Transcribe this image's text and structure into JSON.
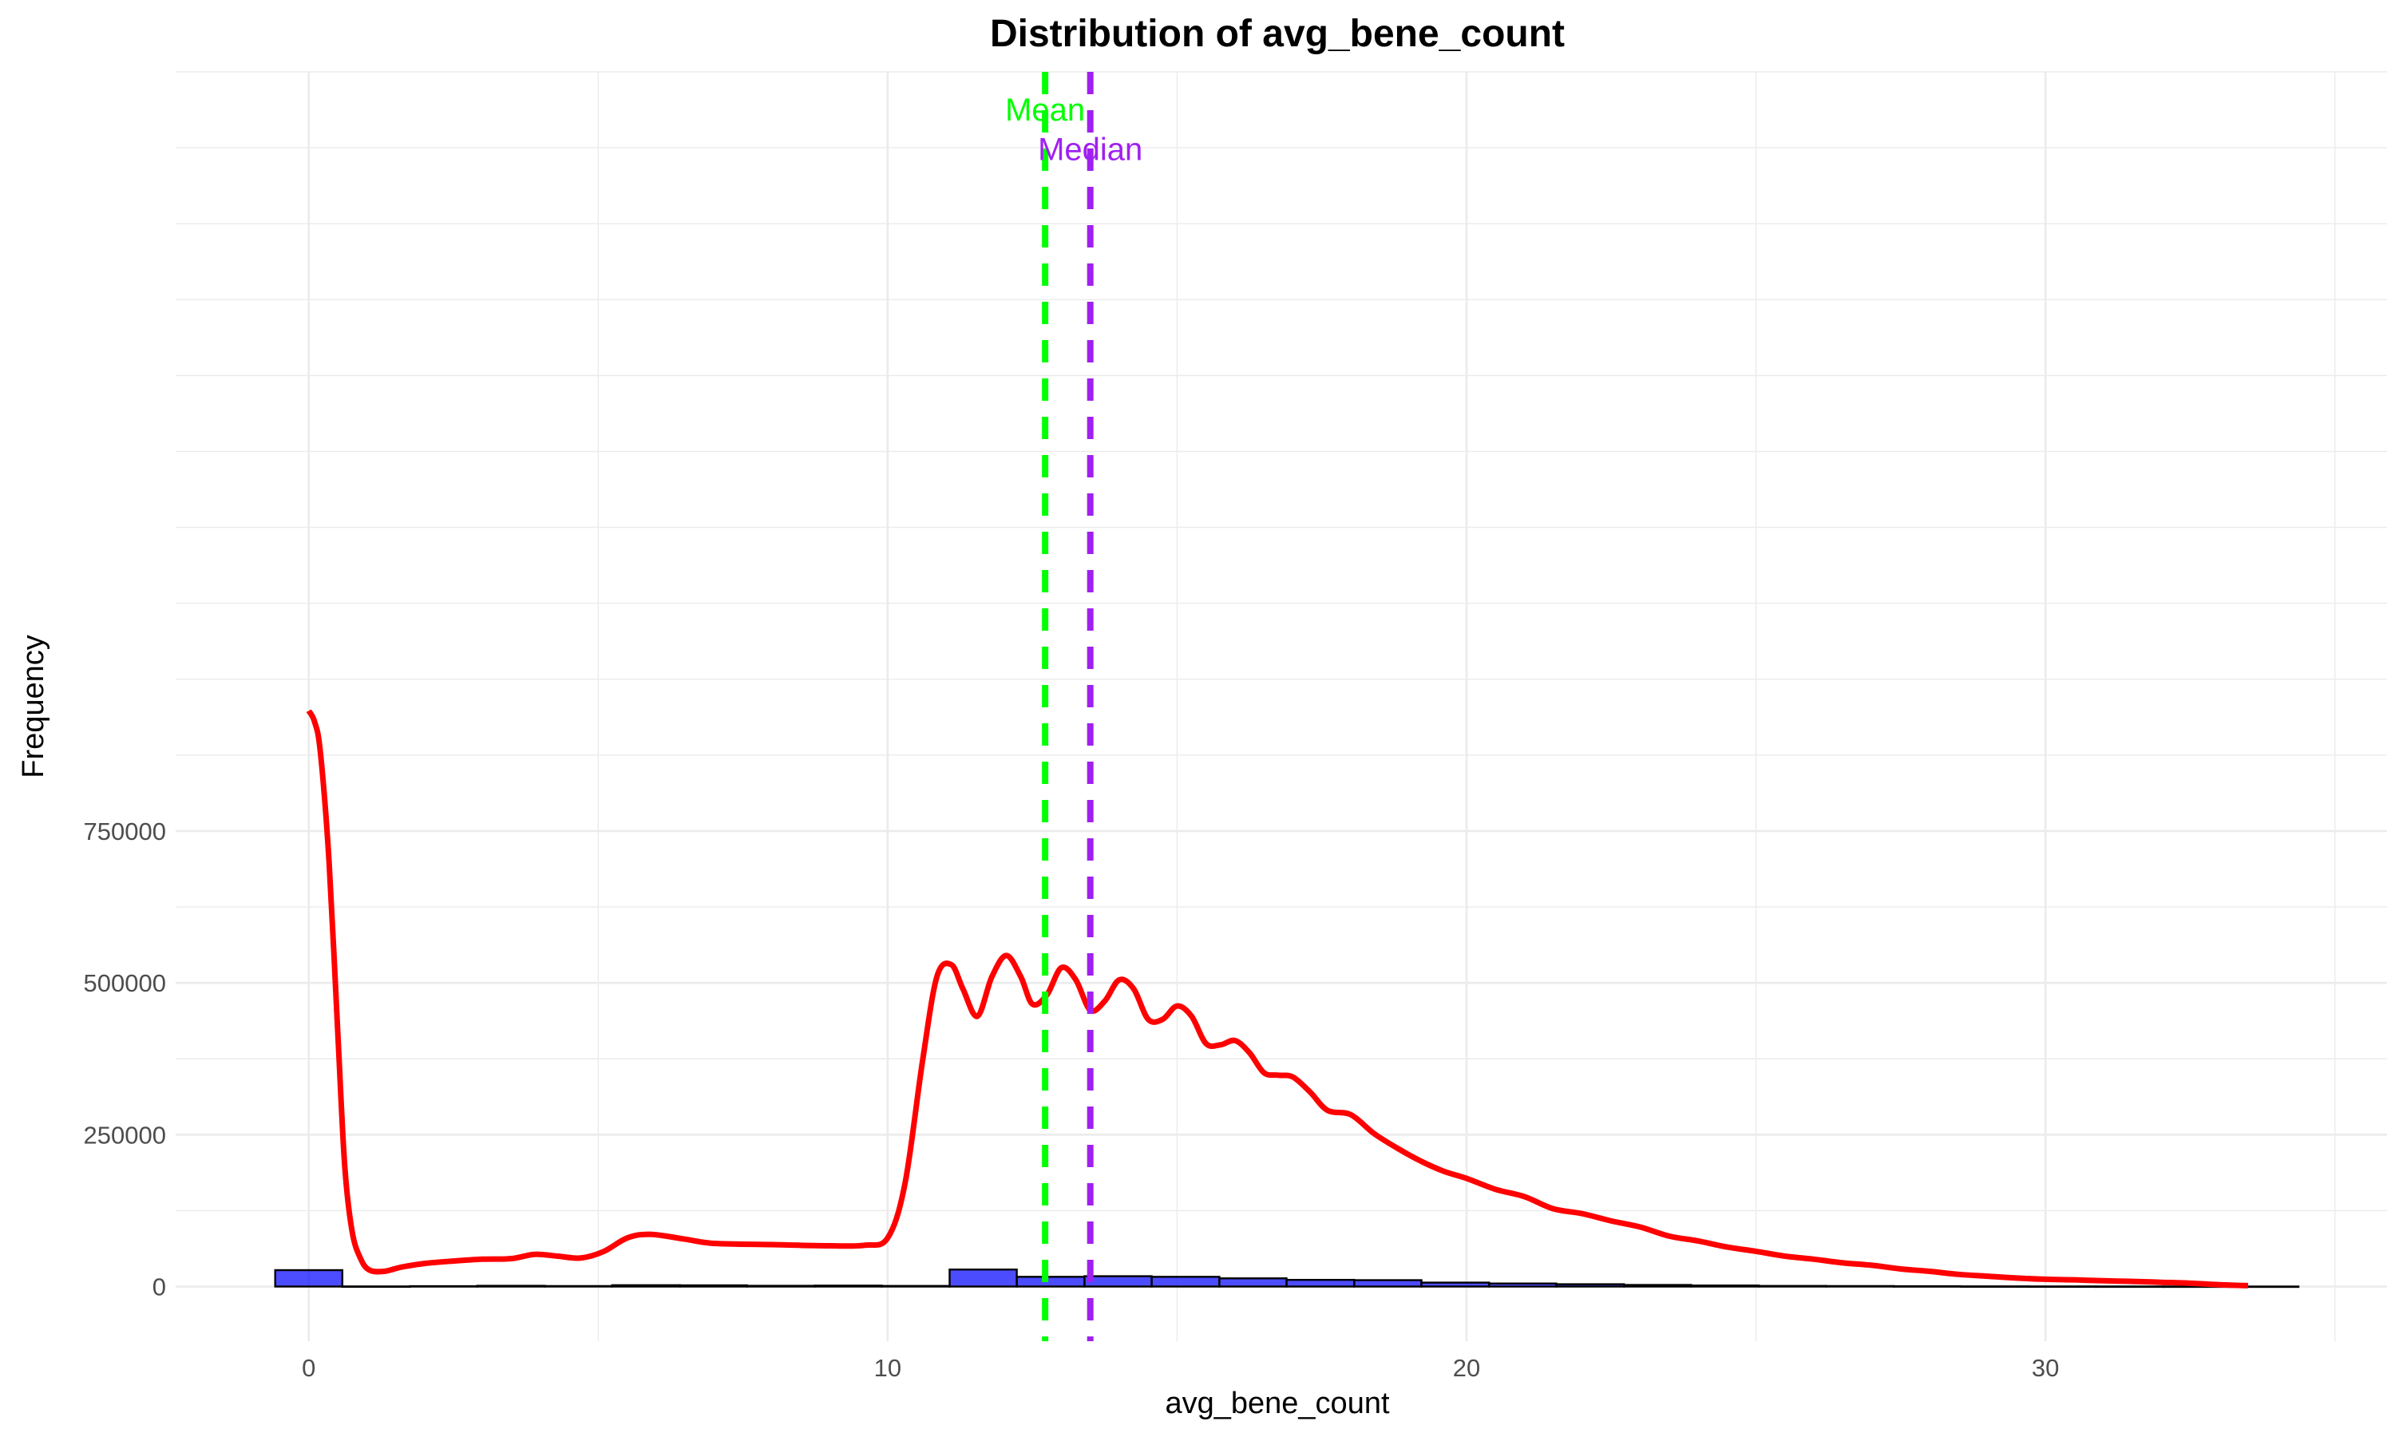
{
  "chart_data": {
    "type": "histogram",
    "title": "Distribution of avg_bene_count",
    "xlabel": "avg_bene_count",
    "ylabel": "Frequency",
    "xlim": [
      -2.3,
      35.9
    ],
    "ylim": [
      -90000,
      2000000
    ],
    "x_ticks": [
      0,
      10,
      20,
      30
    ],
    "y_ticks": [
      0,
      250000,
      500000,
      750000
    ],
    "y_tick_labels": [
      "0",
      "250000",
      "500000",
      "750000"
    ],
    "grid": true,
    "histogram": {
      "fill_color": "#0000ff",
      "edge_color": "#000000",
      "bin_width": 1.165,
      "bins": [
        {
          "x0": -0.58,
          "x1": 0.58,
          "count": 27000
        },
        {
          "x0": 0.58,
          "x1": 1.75,
          "count": 200
        },
        {
          "x0": 1.75,
          "x1": 2.91,
          "count": 600
        },
        {
          "x0": 2.91,
          "x1": 4.08,
          "count": 1200
        },
        {
          "x0": 4.08,
          "x1": 5.24,
          "count": 800
        },
        {
          "x0": 5.24,
          "x1": 6.41,
          "count": 2200
        },
        {
          "x0": 6.41,
          "x1": 7.57,
          "count": 2000
        },
        {
          "x0": 7.57,
          "x1": 8.74,
          "count": 1200
        },
        {
          "x0": 8.74,
          "x1": 9.9,
          "count": 1500
        },
        {
          "x0": 9.9,
          "x1": 11.07,
          "count": 1000
        },
        {
          "x0": 11.07,
          "x1": 12.23,
          "count": 28000
        },
        {
          "x0": 12.23,
          "x1": 13.4,
          "count": 16000
        },
        {
          "x0": 13.4,
          "x1": 14.56,
          "count": 17000
        },
        {
          "x0": 14.56,
          "x1": 15.73,
          "count": 16000
        },
        {
          "x0": 15.73,
          "x1": 16.89,
          "count": 13500
        },
        {
          "x0": 16.89,
          "x1": 18.06,
          "count": 11000
        },
        {
          "x0": 18.06,
          "x1": 19.22,
          "count": 10500
        },
        {
          "x0": 19.22,
          "x1": 20.39,
          "count": 6500
        },
        {
          "x0": 20.39,
          "x1": 21.55,
          "count": 5000
        },
        {
          "x0": 21.55,
          "x1": 22.72,
          "count": 3800
        },
        {
          "x0": 22.72,
          "x1": 23.88,
          "count": 2600
        },
        {
          "x0": 23.88,
          "x1": 25.05,
          "count": 1700
        },
        {
          "x0": 25.05,
          "x1": 26.21,
          "count": 1000
        },
        {
          "x0": 26.21,
          "x1": 27.38,
          "count": 800
        },
        {
          "x0": 27.38,
          "x1": 28.54,
          "count": 500
        },
        {
          "x0": 28.54,
          "x1": 29.71,
          "count": 300
        },
        {
          "x0": 29.71,
          "x1": 30.87,
          "count": 200
        },
        {
          "x0": 30.87,
          "x1": 32.04,
          "count": 150
        },
        {
          "x0": 32.04,
          "x1": 33.2,
          "count": 100
        },
        {
          "x0": 33.2,
          "x1": 34.37,
          "count": 50
        }
      ]
    },
    "density_curve": {
      "color": "#ff0000",
      "points": [
        [
          0.0,
          948000
        ],
        [
          0.1,
          930000
        ],
        [
          0.2,
          880000
        ],
        [
          0.35,
          700000
        ],
        [
          0.5,
          420000
        ],
        [
          0.62,
          200000
        ],
        [
          0.75,
          90000
        ],
        [
          0.9,
          45000
        ],
        [
          1.05,
          27000
        ],
        [
          1.3,
          25000
        ],
        [
          1.6,
          32000
        ],
        [
          2.0,
          38000
        ],
        [
          2.5,
          42000
        ],
        [
          3.0,
          45000
        ],
        [
          3.5,
          46000
        ],
        [
          3.9,
          53000
        ],
        [
          4.3,
          50000
        ],
        [
          4.7,
          47000
        ],
        [
          5.1,
          58000
        ],
        [
          5.5,
          80000
        ],
        [
          5.9,
          86000
        ],
        [
          6.5,
          78000
        ],
        [
          7.0,
          71000
        ],
        [
          8.0,
          69000
        ],
        [
          9.0,
          67000
        ],
        [
          9.6,
          68000
        ],
        [
          10.0,
          80000
        ],
        [
          10.3,
          170000
        ],
        [
          10.6,
          370000
        ],
        [
          10.85,
          510000
        ],
        [
          11.1,
          530000
        ],
        [
          11.3,
          490000
        ],
        [
          11.55,
          445000
        ],
        [
          11.8,
          510000
        ],
        [
          12.05,
          545000
        ],
        [
          12.3,
          510000
        ],
        [
          12.5,
          465000
        ],
        [
          12.75,
          480000
        ],
        [
          13.0,
          525000
        ],
        [
          13.25,
          505000
        ],
        [
          13.5,
          455000
        ],
        [
          13.75,
          470000
        ],
        [
          14.0,
          505000
        ],
        [
          14.25,
          490000
        ],
        [
          14.5,
          440000
        ],
        [
          14.75,
          440000
        ],
        [
          15.0,
          462000
        ],
        [
          15.25,
          445000
        ],
        [
          15.5,
          400000
        ],
        [
          15.75,
          398000
        ],
        [
          16.0,
          405000
        ],
        [
          16.25,
          385000
        ],
        [
          16.5,
          352000
        ],
        [
          16.75,
          348000
        ],
        [
          17.0,
          345000
        ],
        [
          17.3,
          320000
        ],
        [
          17.6,
          290000
        ],
        [
          18.0,
          283000
        ],
        [
          18.4,
          252000
        ],
        [
          18.8,
          228000
        ],
        [
          19.2,
          207000
        ],
        [
          19.6,
          190000
        ],
        [
          20.0,
          178000
        ],
        [
          20.5,
          160000
        ],
        [
          21.0,
          148000
        ],
        [
          21.5,
          128000
        ],
        [
          22.0,
          120000
        ],
        [
          22.5,
          108000
        ],
        [
          23.0,
          98000
        ],
        [
          23.5,
          83000
        ],
        [
          24.0,
          75000
        ],
        [
          24.5,
          65000
        ],
        [
          25.0,
          58000
        ],
        [
          25.5,
          50000
        ],
        [
          26.0,
          45000
        ],
        [
          26.5,
          39000
        ],
        [
          27.0,
          35000
        ],
        [
          27.5,
          29000
        ],
        [
          28.0,
          25000
        ],
        [
          28.5,
          20000
        ],
        [
          29.0,
          17000
        ],
        [
          29.5,
          14000
        ],
        [
          30.0,
          12000
        ],
        [
          30.5,
          11000
        ],
        [
          31.0,
          9500
        ],
        [
          31.5,
          8500
        ],
        [
          32.0,
          7000
        ],
        [
          32.5,
          5500
        ],
        [
          33.0,
          3000
        ],
        [
          33.5,
          1500
        ]
      ]
    },
    "reference_lines": [
      {
        "name": "Mean",
        "x": 12.72,
        "color": "#00ff00",
        "style": "dashed"
      },
      {
        "name": "Median",
        "x": 13.5,
        "color": "#a020f0",
        "style": "dashed"
      }
    ],
    "annotations": [
      {
        "text": "Mean",
        "x": 12.72,
        "y": 1920000,
        "color": "#00ff00"
      },
      {
        "text": "Median",
        "x": 13.5,
        "y": 1855000,
        "color": "#a020f0"
      }
    ]
  }
}
